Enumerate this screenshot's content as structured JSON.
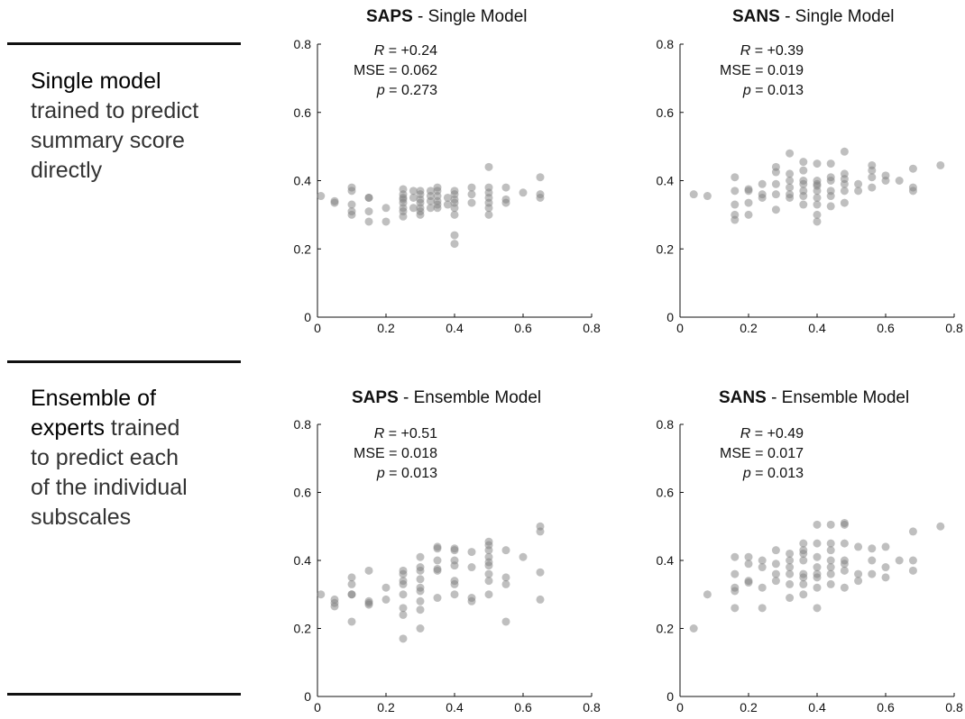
{
  "rows": [
    {
      "strong": "Single model",
      "rest": "trained to predict summary score directly",
      "lines": [
        [
          "Single model",
          "strong"
        ],
        [
          "trained to predict",
          "rest"
        ],
        [
          "summary score",
          "rest"
        ],
        [
          "directly",
          "rest"
        ]
      ]
    },
    {
      "lines": [
        [
          "Ensemble of",
          "strong"
        ],
        [
          "experts",
          "strong",
          " trained",
          "rest"
        ],
        [
          "to predict each",
          "rest"
        ],
        [
          "of the individual",
          "rest"
        ],
        [
          "subscales",
          "rest"
        ]
      ]
    }
  ],
  "colors": {
    "marker": "#7f7f7f",
    "axis": "#111111"
  },
  "chart_data": [
    {
      "type": "scatter",
      "title_bold": "SAPS",
      "title_rest": " - Single Model",
      "stats": {
        "R_label": "R",
        "R": "= +0.24",
        "MSE": "MSE = 0.062",
        "p_label": "p",
        "p": "= 0.273"
      },
      "xlim": [
        0,
        0.8
      ],
      "ylim": [
        0,
        0.8
      ],
      "xticks": [
        "0",
        "0.2",
        "0.4",
        "0.6",
        "0.8"
      ],
      "yticks": [
        "0",
        "0.2",
        "0.4",
        "0.6",
        "0.8"
      ],
      "points": [
        [
          0.01,
          0.355
        ],
        [
          0.05,
          0.34
        ],
        [
          0.05,
          0.335
        ],
        [
          0.1,
          0.38
        ],
        [
          0.1,
          0.37
        ],
        [
          0.1,
          0.33
        ],
        [
          0.1,
          0.31
        ],
        [
          0.1,
          0.3
        ],
        [
          0.15,
          0.35
        ],
        [
          0.15,
          0.35
        ],
        [
          0.15,
          0.31
        ],
        [
          0.15,
          0.28
        ],
        [
          0.2,
          0.32
        ],
        [
          0.2,
          0.28
        ],
        [
          0.25,
          0.375
        ],
        [
          0.25,
          0.36
        ],
        [
          0.25,
          0.35
        ],
        [
          0.25,
          0.345
        ],
        [
          0.25,
          0.335
        ],
        [
          0.25,
          0.32
        ],
        [
          0.25,
          0.31
        ],
        [
          0.25,
          0.295
        ],
        [
          0.28,
          0.37
        ],
        [
          0.28,
          0.35
        ],
        [
          0.28,
          0.32
        ],
        [
          0.3,
          0.37
        ],
        [
          0.3,
          0.36
        ],
        [
          0.3,
          0.345
        ],
        [
          0.3,
          0.335
        ],
        [
          0.3,
          0.32
        ],
        [
          0.3,
          0.31
        ],
        [
          0.3,
          0.3
        ],
        [
          0.33,
          0.37
        ],
        [
          0.33,
          0.355
        ],
        [
          0.33,
          0.34
        ],
        [
          0.33,
          0.32
        ],
        [
          0.35,
          0.38
        ],
        [
          0.35,
          0.37
        ],
        [
          0.35,
          0.355
        ],
        [
          0.35,
          0.34
        ],
        [
          0.35,
          0.33
        ],
        [
          0.35,
          0.32
        ],
        [
          0.38,
          0.35
        ],
        [
          0.38,
          0.33
        ],
        [
          0.4,
          0.37
        ],
        [
          0.4,
          0.36
        ],
        [
          0.4,
          0.345
        ],
        [
          0.4,
          0.335
        ],
        [
          0.4,
          0.32
        ],
        [
          0.4,
          0.3
        ],
        [
          0.4,
          0.24
        ],
        [
          0.4,
          0.215
        ],
        [
          0.45,
          0.38
        ],
        [
          0.45,
          0.36
        ],
        [
          0.45,
          0.335
        ],
        [
          0.5,
          0.44
        ],
        [
          0.5,
          0.38
        ],
        [
          0.5,
          0.365
        ],
        [
          0.5,
          0.35
        ],
        [
          0.5,
          0.335
        ],
        [
          0.5,
          0.32
        ],
        [
          0.5,
          0.3
        ],
        [
          0.55,
          0.38
        ],
        [
          0.55,
          0.345
        ],
        [
          0.55,
          0.335
        ],
        [
          0.6,
          0.365
        ],
        [
          0.65,
          0.41
        ],
        [
          0.65,
          0.36
        ],
        [
          0.65,
          0.35
        ]
      ]
    },
    {
      "type": "scatter",
      "title_bold": "SANS",
      "title_rest": " - Single Model",
      "stats": {
        "R_label": "R",
        "R": "= +0.39",
        "MSE": "MSE = 0.019",
        "p_label": "p",
        "p": "= 0.013"
      },
      "xlim": [
        0,
        0.8
      ],
      "ylim": [
        0,
        0.8
      ],
      "xticks": [
        "0",
        "0.2",
        "0.4",
        "0.6",
        "0.8"
      ],
      "yticks": [
        "0",
        "0.2",
        "0.4",
        "0.6",
        "0.8"
      ],
      "points": [
        [
          0.04,
          0.36
        ],
        [
          0.08,
          0.355
        ],
        [
          0.16,
          0.41
        ],
        [
          0.16,
          0.37
        ],
        [
          0.16,
          0.33
        ],
        [
          0.16,
          0.3
        ],
        [
          0.16,
          0.285
        ],
        [
          0.2,
          0.375
        ],
        [
          0.2,
          0.37
        ],
        [
          0.2,
          0.335
        ],
        [
          0.2,
          0.3
        ],
        [
          0.24,
          0.39
        ],
        [
          0.24,
          0.36
        ],
        [
          0.24,
          0.35
        ],
        [
          0.28,
          0.44
        ],
        [
          0.28,
          0.425
        ],
        [
          0.28,
          0.39
        ],
        [
          0.28,
          0.36
        ],
        [
          0.28,
          0.315
        ],
        [
          0.32,
          0.48
        ],
        [
          0.32,
          0.42
        ],
        [
          0.32,
          0.4
        ],
        [
          0.32,
          0.38
        ],
        [
          0.32,
          0.36
        ],
        [
          0.32,
          0.35
        ],
        [
          0.36,
          0.455
        ],
        [
          0.36,
          0.43
        ],
        [
          0.36,
          0.4
        ],
        [
          0.36,
          0.39
        ],
        [
          0.36,
          0.37
        ],
        [
          0.36,
          0.355
        ],
        [
          0.36,
          0.33
        ],
        [
          0.4,
          0.45
        ],
        [
          0.4,
          0.4
        ],
        [
          0.4,
          0.39
        ],
        [
          0.4,
          0.385
        ],
        [
          0.4,
          0.37
        ],
        [
          0.4,
          0.35
        ],
        [
          0.4,
          0.33
        ],
        [
          0.4,
          0.3
        ],
        [
          0.4,
          0.28
        ],
        [
          0.44,
          0.45
        ],
        [
          0.44,
          0.41
        ],
        [
          0.44,
          0.4
        ],
        [
          0.44,
          0.37
        ],
        [
          0.44,
          0.355
        ],
        [
          0.44,
          0.325
        ],
        [
          0.48,
          0.485
        ],
        [
          0.48,
          0.42
        ],
        [
          0.48,
          0.405
        ],
        [
          0.48,
          0.39
        ],
        [
          0.48,
          0.37
        ],
        [
          0.48,
          0.335
        ],
        [
          0.52,
          0.39
        ],
        [
          0.52,
          0.37
        ],
        [
          0.56,
          0.445
        ],
        [
          0.56,
          0.43
        ],
        [
          0.56,
          0.41
        ],
        [
          0.56,
          0.38
        ],
        [
          0.6,
          0.415
        ],
        [
          0.6,
          0.4
        ],
        [
          0.64,
          0.4
        ],
        [
          0.68,
          0.435
        ],
        [
          0.68,
          0.38
        ],
        [
          0.68,
          0.37
        ],
        [
          0.76,
          0.445
        ]
      ]
    },
    {
      "type": "scatter",
      "title_bold": "SAPS",
      "title_rest": " - Ensemble Model",
      "stats": {
        "R_label": "R",
        "R": "= +0.51",
        "MSE": "MSE = 0.018",
        "p_label": "p",
        "p": "= 0.013"
      },
      "xlim": [
        0,
        0.8
      ],
      "ylim": [
        0,
        0.8
      ],
      "xticks": [
        "0",
        "0.2",
        "0.4",
        "0.6",
        "0.8"
      ],
      "yticks": [
        "0",
        "0.2",
        "0.4",
        "0.6",
        "0.8"
      ],
      "points": [
        [
          0.01,
          0.3
        ],
        [
          0.05,
          0.285
        ],
        [
          0.05,
          0.275
        ],
        [
          0.05,
          0.265
        ],
        [
          0.1,
          0.35
        ],
        [
          0.1,
          0.33
        ],
        [
          0.1,
          0.3
        ],
        [
          0.1,
          0.3
        ],
        [
          0.1,
          0.22
        ],
        [
          0.15,
          0.37
        ],
        [
          0.15,
          0.28
        ],
        [
          0.15,
          0.275
        ],
        [
          0.15,
          0.27
        ],
        [
          0.2,
          0.32
        ],
        [
          0.2,
          0.285
        ],
        [
          0.25,
          0.37
        ],
        [
          0.25,
          0.36
        ],
        [
          0.25,
          0.34
        ],
        [
          0.25,
          0.33
        ],
        [
          0.25,
          0.3
        ],
        [
          0.25,
          0.26
        ],
        [
          0.25,
          0.24
        ],
        [
          0.25,
          0.17
        ],
        [
          0.3,
          0.41
        ],
        [
          0.3,
          0.38
        ],
        [
          0.3,
          0.37
        ],
        [
          0.3,
          0.345
        ],
        [
          0.3,
          0.32
        ],
        [
          0.3,
          0.31
        ],
        [
          0.3,
          0.28
        ],
        [
          0.3,
          0.255
        ],
        [
          0.3,
          0.2
        ],
        [
          0.35,
          0.44
        ],
        [
          0.35,
          0.435
        ],
        [
          0.35,
          0.4
        ],
        [
          0.35,
          0.375
        ],
        [
          0.35,
          0.37
        ],
        [
          0.35,
          0.29
        ],
        [
          0.4,
          0.435
        ],
        [
          0.4,
          0.43
        ],
        [
          0.4,
          0.4
        ],
        [
          0.4,
          0.385
        ],
        [
          0.4,
          0.34
        ],
        [
          0.4,
          0.33
        ],
        [
          0.4,
          0.3
        ],
        [
          0.45,
          0.425
        ],
        [
          0.45,
          0.38
        ],
        [
          0.45,
          0.29
        ],
        [
          0.45,
          0.28
        ],
        [
          0.5,
          0.455
        ],
        [
          0.5,
          0.445
        ],
        [
          0.5,
          0.43
        ],
        [
          0.5,
          0.41
        ],
        [
          0.5,
          0.395
        ],
        [
          0.5,
          0.385
        ],
        [
          0.5,
          0.36
        ],
        [
          0.5,
          0.34
        ],
        [
          0.5,
          0.3
        ],
        [
          0.55,
          0.43
        ],
        [
          0.55,
          0.35
        ],
        [
          0.55,
          0.33
        ],
        [
          0.55,
          0.22
        ],
        [
          0.6,
          0.41
        ],
        [
          0.65,
          0.5
        ],
        [
          0.65,
          0.485
        ],
        [
          0.65,
          0.365
        ],
        [
          0.65,
          0.285
        ]
      ]
    },
    {
      "type": "scatter",
      "title_bold": "SANS",
      "title_rest": " - Ensemble Model",
      "stats": {
        "R_label": "R",
        "R": "= +0.49",
        "MSE": "MSE = 0.017",
        "p_label": "p",
        "p": "= 0.013"
      },
      "xlim": [
        0,
        0.8
      ],
      "ylim": [
        0,
        0.8
      ],
      "xticks": [
        "0",
        "0.2",
        "0.4",
        "0.6",
        "0.8"
      ],
      "yticks": [
        "0",
        "0.2",
        "0.4",
        "0.6",
        "0.8"
      ],
      "points": [
        [
          0.04,
          0.2
        ],
        [
          0.08,
          0.3
        ],
        [
          0.16,
          0.41
        ],
        [
          0.16,
          0.36
        ],
        [
          0.16,
          0.32
        ],
        [
          0.16,
          0.31
        ],
        [
          0.16,
          0.26
        ],
        [
          0.2,
          0.41
        ],
        [
          0.2,
          0.39
        ],
        [
          0.2,
          0.34
        ],
        [
          0.2,
          0.335
        ],
        [
          0.24,
          0.4
        ],
        [
          0.24,
          0.38
        ],
        [
          0.24,
          0.32
        ],
        [
          0.24,
          0.26
        ],
        [
          0.28,
          0.43
        ],
        [
          0.28,
          0.39
        ],
        [
          0.28,
          0.36
        ],
        [
          0.28,
          0.34
        ],
        [
          0.32,
          0.42
        ],
        [
          0.32,
          0.4
        ],
        [
          0.32,
          0.38
        ],
        [
          0.32,
          0.36
        ],
        [
          0.32,
          0.33
        ],
        [
          0.32,
          0.29
        ],
        [
          0.36,
          0.45
        ],
        [
          0.36,
          0.43
        ],
        [
          0.36,
          0.42
        ],
        [
          0.36,
          0.4
        ],
        [
          0.36,
          0.36
        ],
        [
          0.36,
          0.35
        ],
        [
          0.36,
          0.33
        ],
        [
          0.36,
          0.3
        ],
        [
          0.4,
          0.505
        ],
        [
          0.4,
          0.45
        ],
        [
          0.4,
          0.41
        ],
        [
          0.4,
          0.38
        ],
        [
          0.4,
          0.36
        ],
        [
          0.4,
          0.35
        ],
        [
          0.4,
          0.32
        ],
        [
          0.4,
          0.26
        ],
        [
          0.44,
          0.505
        ],
        [
          0.44,
          0.45
        ],
        [
          0.44,
          0.43
        ],
        [
          0.44,
          0.4
        ],
        [
          0.44,
          0.38
        ],
        [
          0.44,
          0.36
        ],
        [
          0.44,
          0.33
        ],
        [
          0.48,
          0.51
        ],
        [
          0.48,
          0.505
        ],
        [
          0.48,
          0.45
        ],
        [
          0.48,
          0.4
        ],
        [
          0.48,
          0.39
        ],
        [
          0.48,
          0.37
        ],
        [
          0.48,
          0.32
        ],
        [
          0.52,
          0.44
        ],
        [
          0.52,
          0.36
        ],
        [
          0.52,
          0.34
        ],
        [
          0.56,
          0.435
        ],
        [
          0.56,
          0.4
        ],
        [
          0.56,
          0.36
        ],
        [
          0.6,
          0.44
        ],
        [
          0.6,
          0.38
        ],
        [
          0.6,
          0.35
        ],
        [
          0.64,
          0.4
        ],
        [
          0.68,
          0.485
        ],
        [
          0.68,
          0.4
        ],
        [
          0.68,
          0.37
        ],
        [
          0.76,
          0.5
        ]
      ]
    }
  ]
}
